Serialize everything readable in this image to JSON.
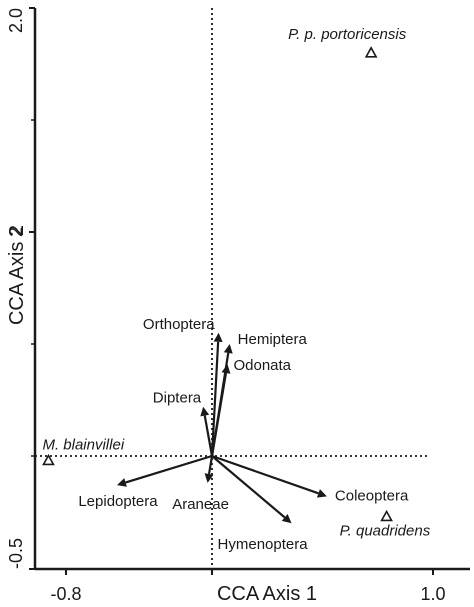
{
  "chart_data": {
    "type": "scatter",
    "xlabel": "CCA Axis 1",
    "ylabel": "CCA Axis 2",
    "xlim": [
      -0.8,
      1.0
    ],
    "ylim": [
      -0.5,
      2.0
    ],
    "x_tick_labels": [
      "-0.8",
      "1.0"
    ],
    "y_tick_labels": [
      "2.0",
      "2",
      "-0.5"
    ],
    "grid": false,
    "origin_dashed_lines": true,
    "vectors": [
      {
        "label": "Orthoptera",
        "x": 0.03,
        "y": 0.55
      },
      {
        "label": "Hemiptera",
        "x": 0.08,
        "y": 0.5
      },
      {
        "label": "Odonata",
        "x": 0.07,
        "y": 0.41
      },
      {
        "label": "Diptera",
        "x": -0.04,
        "y": 0.22
      },
      {
        "label": "Lepidoptera",
        "x": -0.43,
        "y": -0.13
      },
      {
        "label": "Araneae",
        "x": -0.02,
        "y": -0.12
      },
      {
        "label": "Coleoptera",
        "x": 0.52,
        "y": -0.18
      },
      {
        "label": "Hymenoptera",
        "x": 0.36,
        "y": -0.3
      }
    ],
    "species": [
      {
        "label": "P. p. portoricensis",
        "x": 0.72,
        "y": 1.8
      },
      {
        "label": "M. blainvillei",
        "x": -0.74,
        "y": -0.02
      },
      {
        "label": "P. quadridens",
        "x": 0.79,
        "y": -0.27
      }
    ],
    "colors": {
      "ink": "#1a1a1a"
    }
  }
}
